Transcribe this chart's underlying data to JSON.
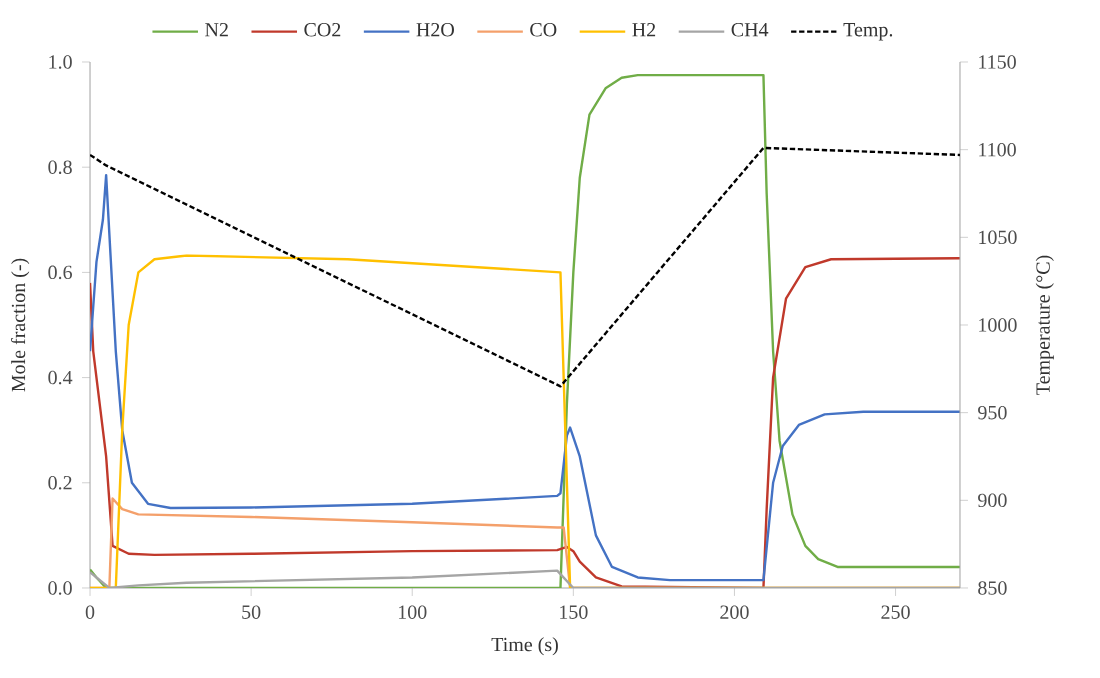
{
  "chart_data": {
    "type": "line",
    "xlabel": "Time (s)",
    "ylabel": "Mole fraction (-)",
    "y2label": "Temperature (°C)",
    "xlim": [
      0,
      270
    ],
    "xticks": [
      0,
      50,
      100,
      150,
      200,
      250
    ],
    "ylim": [
      0,
      1
    ],
    "yticks": [
      {
        "value": 0,
        "label": "0.0"
      },
      0.2,
      0.4,
      0.6,
      0.8,
      {
        "value": 1,
        "label": "1.0"
      }
    ],
    "y2lim": [
      850,
      1150
    ],
    "y2ticks": [
      850,
      900,
      950,
      1000,
      1050,
      1100,
      1150
    ],
    "grid": false,
    "legend": "top",
    "series": [
      {
        "name": "N2",
        "color": "#70ad47",
        "x": [
          0,
          2,
          5,
          146,
          148,
          150,
          152,
          155,
          160,
          165,
          170,
          209,
          210,
          212,
          214,
          218,
          222,
          226,
          232,
          270
        ],
        "values": [
          0.035,
          0.02,
          0.0,
          0.0,
          0.35,
          0.6,
          0.78,
          0.9,
          0.95,
          0.97,
          0.975,
          0.975,
          0.75,
          0.45,
          0.28,
          0.14,
          0.08,
          0.055,
          0.04,
          0.04
        ]
      },
      {
        "name": "CO2",
        "color": "#c0392b",
        "x": [
          0,
          1,
          4,
          5,
          7,
          12,
          20,
          50,
          100,
          145,
          148,
          150,
          152,
          157,
          165,
          209,
          210,
          212,
          216,
          222,
          230,
          270
        ],
        "values": [
          0.58,
          0.45,
          0.3,
          0.25,
          0.08,
          0.065,
          0.063,
          0.065,
          0.07,
          0.072,
          0.078,
          0.07,
          0.05,
          0.02,
          0.003,
          0.0,
          0.15,
          0.4,
          0.55,
          0.61,
          0.625,
          0.627
        ]
      },
      {
        "name": "H2O",
        "color": "#4472c4",
        "x": [
          0,
          2,
          4,
          5,
          8,
          10,
          13,
          18,
          25,
          50,
          100,
          145,
          146,
          148,
          149,
          152,
          157,
          162,
          170,
          180,
          209,
          212,
          215,
          220,
          228,
          240,
          270
        ],
        "values": [
          0.45,
          0.62,
          0.7,
          0.785,
          0.45,
          0.3,
          0.2,
          0.16,
          0.152,
          0.153,
          0.16,
          0.175,
          0.18,
          0.29,
          0.305,
          0.25,
          0.1,
          0.04,
          0.02,
          0.015,
          0.015,
          0.2,
          0.27,
          0.31,
          0.33,
          0.335,
          0.335
        ]
      },
      {
        "name": "CO",
        "color": "#f4a06b",
        "x": [
          0,
          6,
          7,
          10,
          15,
          50,
          100,
          145,
          147,
          149,
          270
        ],
        "values": [
          0.0,
          0.0,
          0.17,
          0.15,
          0.14,
          0.135,
          0.125,
          0.115,
          0.115,
          0.0,
          0.0
        ]
      },
      {
        "name": "H2",
        "color": "#ffc000",
        "x": [
          0,
          8,
          10,
          12,
          15,
          20,
          30,
          80,
          146,
          149,
          270
        ],
        "values": [
          0.0,
          0.0,
          0.3,
          0.5,
          0.6,
          0.625,
          0.632,
          0.625,
          0.6,
          0.0,
          0.0
        ]
      },
      {
        "name": "CH4",
        "color": "#a5a5a5",
        "x": [
          0,
          6,
          15,
          30,
          100,
          145,
          150,
          270
        ],
        "values": [
          0.03,
          0.0,
          0.005,
          0.01,
          0.02,
          0.033,
          0.0,
          0.0
        ]
      },
      {
        "name": "Temp.",
        "color": "#000000",
        "axis": "y2",
        "line_style": "dashed",
        "x": [
          0,
          5,
          146,
          209,
          270
        ],
        "values": [
          1097,
          1091,
          965,
          1101,
          1097
        ]
      }
    ]
  }
}
